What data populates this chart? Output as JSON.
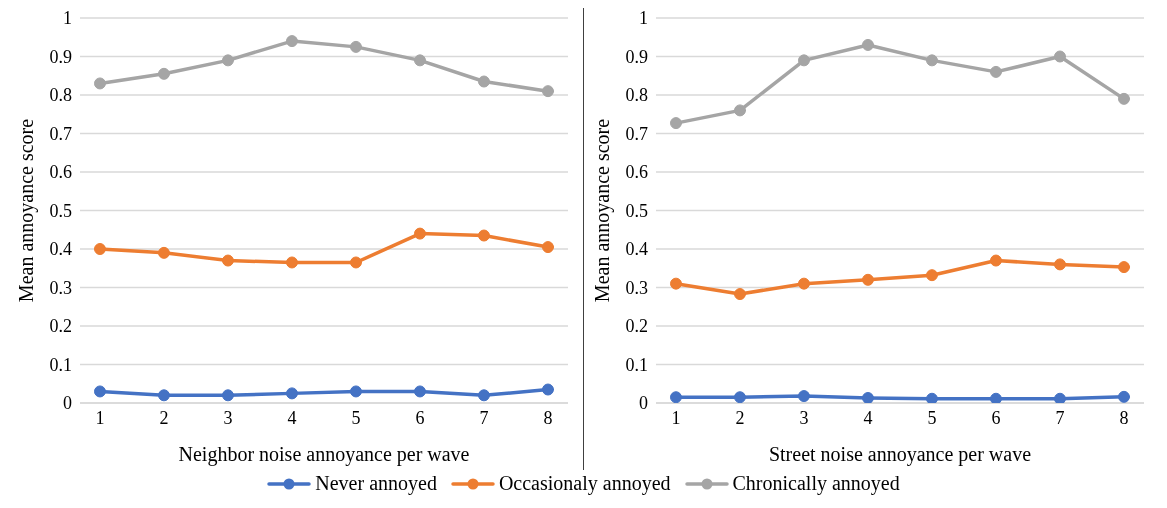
{
  "chart_data": [
    {
      "type": "line",
      "xlabel": "Neighbor noise annoyance per wave",
      "ylabel": "Mean annoyance score",
      "categories": [
        "1",
        "2",
        "3",
        "4",
        "5",
        "6",
        "7",
        "8"
      ],
      "ylim": [
        0,
        1
      ],
      "yticks": [
        0,
        0.1,
        0.2,
        0.3,
        0.4,
        0.5,
        0.6,
        0.7,
        0.8,
        0.9,
        1
      ],
      "grid": "y",
      "marker": "circle",
      "line_style": "solid",
      "legend": "bottom",
      "series": [
        {
          "name": "Never annoyed",
          "color": "#4472c4",
          "values": [
            0.03,
            0.02,
            0.02,
            0.025,
            0.03,
            0.03,
            0.02,
            0.035
          ]
        },
        {
          "name": "Occasionaly annoyed",
          "color": "#ed7d31",
          "values": [
            0.4,
            0.39,
            0.37,
            0.365,
            0.365,
            0.44,
            0.435,
            0.405
          ]
        },
        {
          "name": "Chronically annoyed",
          "color": "#a5a5a5",
          "values": [
            0.83,
            0.855,
            0.89,
            0.94,
            0.925,
            0.89,
            0.835,
            0.81
          ]
        }
      ]
    },
    {
      "type": "line",
      "xlabel": "Street noise annoyance per wave",
      "ylabel": "Mean annoyance score",
      "categories": [
        "1",
        "2",
        "3",
        "4",
        "5",
        "6",
        "7",
        "8"
      ],
      "ylim": [
        0,
        1
      ],
      "yticks": [
        0,
        0.1,
        0.2,
        0.3,
        0.4,
        0.5,
        0.6,
        0.7,
        0.8,
        0.9,
        1
      ],
      "grid": "y",
      "marker": "circle",
      "line_style": "solid",
      "legend": "bottom",
      "series": [
        {
          "name": "Never annoyed",
          "color": "#4472c4",
          "values": [
            0.015,
            0.015,
            0.018,
            0.013,
            0.011,
            0.011,
            0.011,
            0.016
          ]
        },
        {
          "name": "Occasionaly annoyed",
          "color": "#ed7d31",
          "values": [
            0.31,
            0.283,
            0.31,
            0.32,
            0.332,
            0.37,
            0.36,
            0.353
          ]
        },
        {
          "name": "Chronically annoyed",
          "color": "#a5a5a5",
          "values": [
            0.727,
            0.76,
            0.89,
            0.93,
            0.89,
            0.86,
            0.9,
            0.79
          ]
        }
      ]
    }
  ]
}
